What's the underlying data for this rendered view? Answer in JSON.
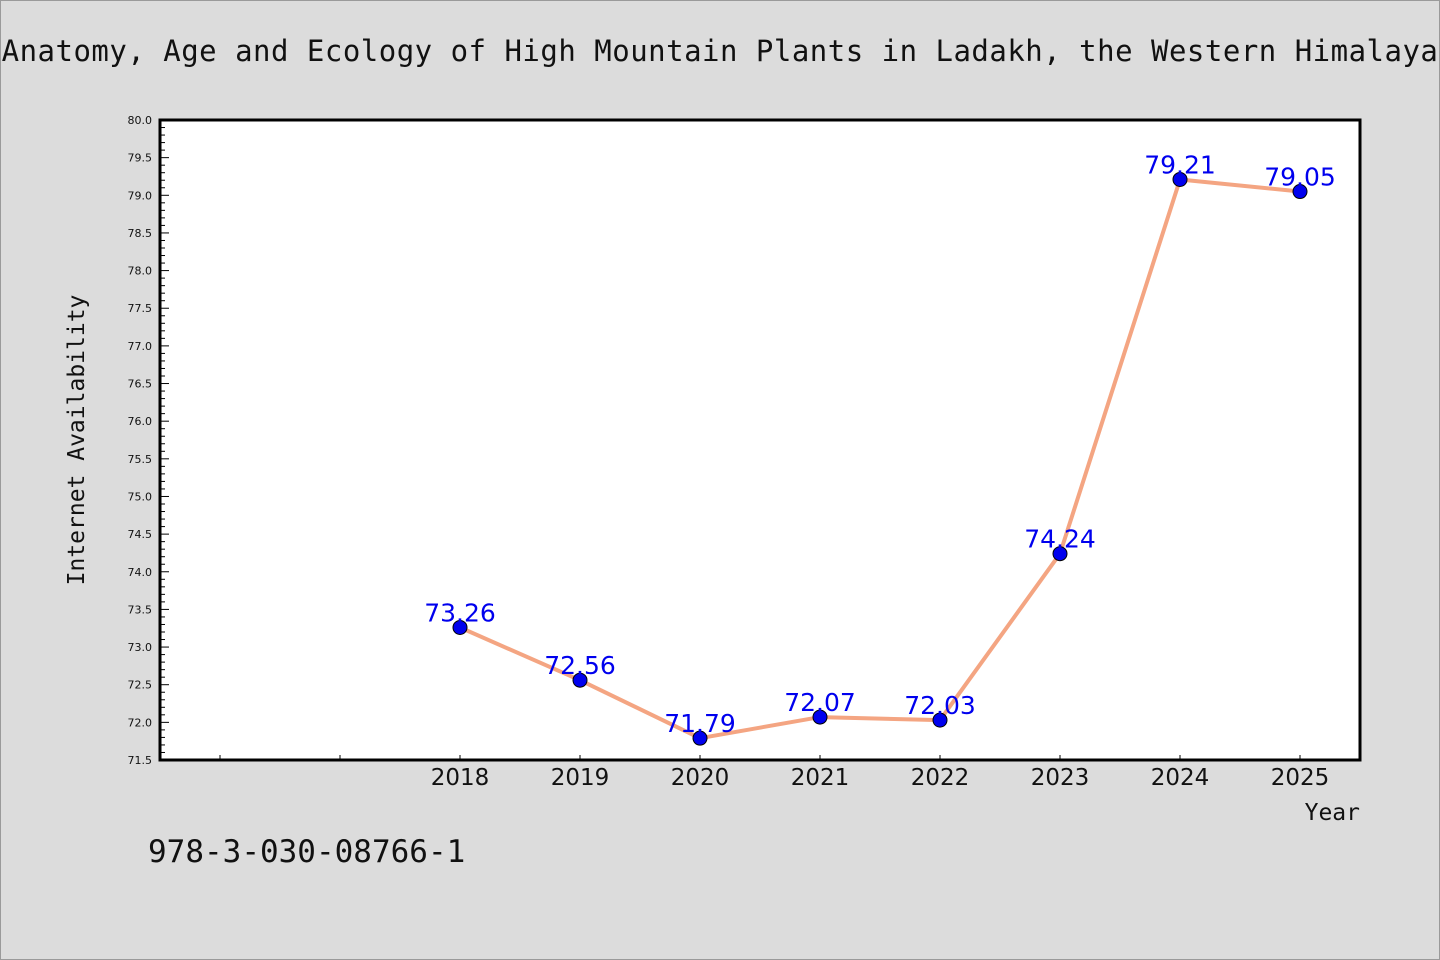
{
  "title": "Anatomy, Age and Ecology of High Mountain Plants in Ladakh, the Western Himalaya",
  "footer_text": "978-3-030-08766-1",
  "chart_data": {
    "type": "line",
    "title": "Anatomy, Age and Ecology of High Mountain Plants in Ladakh, the Western Himalaya",
    "xlabel": "Year",
    "ylabel": "Internet Availability",
    "x": [
      "2018",
      "2019",
      "2020",
      "2021",
      "2022",
      "2023",
      "2024",
      "2025"
    ],
    "series": [
      {
        "values": [
          73.26,
          72.56,
          71.79,
          72.07,
          72.03,
          74.24,
          79.21,
          79.05
        ]
      }
    ],
    "data_labels": [
      "73.26",
      "72.56",
      "71.79",
      "72.07",
      "72.03",
      "74.24",
      "79.21",
      "79.05"
    ],
    "ylim": [
      71.5,
      80.0
    ],
    "y_ticks": [
      "71.5",
      "72.0",
      "72.5",
      "73.0",
      "73.5",
      "74.0",
      "74.5",
      "75.0",
      "75.5",
      "76.0",
      "76.5",
      "77.0",
      "77.5",
      "78.0",
      "78.5",
      "79.0",
      "79.5",
      "80.0"
    ],
    "x_slots": 10,
    "first_labeled_slot": 2,
    "grid": false,
    "legend": "none",
    "colors": {
      "line": "#f4a582",
      "marker": "#0000ee",
      "label": "#0000ee",
      "background": "#dcdcdc",
      "plot_background": "#ffffff"
    }
  }
}
